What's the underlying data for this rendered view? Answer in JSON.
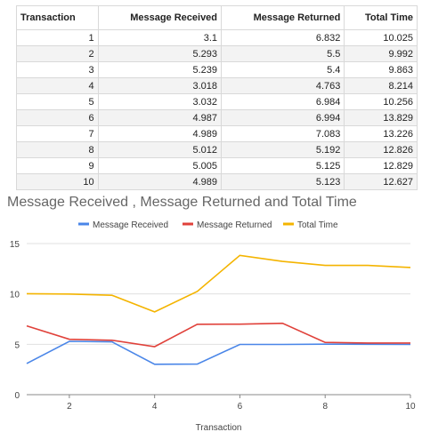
{
  "table": {
    "headers": [
      "Transaction",
      "Message Received",
      "Message Returned",
      "Total Time"
    ],
    "rows": [
      [
        "1",
        "3.1",
        "6.832",
        "10.025"
      ],
      [
        "2",
        "5.293",
        "5.5",
        "9.992"
      ],
      [
        "3",
        "5.239",
        "5.4",
        "9.863"
      ],
      [
        "4",
        "3.018",
        "4.763",
        "8.214"
      ],
      [
        "5",
        "3.032",
        "6.984",
        "10.256"
      ],
      [
        "6",
        "4.987",
        "6.994",
        "13.829"
      ],
      [
        "7",
        "4.989",
        "7.083",
        "13.226"
      ],
      [
        "8",
        "5.012",
        "5.192",
        "12.826"
      ],
      [
        "9",
        "5.005",
        "5.125",
        "12.829"
      ],
      [
        "10",
        "4.989",
        "5.123",
        "12.627"
      ]
    ]
  },
  "chart_data": {
    "type": "line",
    "title": "Message Received , Message Returned and Total Time",
    "xlabel": "Transaction",
    "ylabel": "",
    "x": [
      1,
      2,
      3,
      4,
      5,
      6,
      7,
      8,
      9,
      10
    ],
    "xlim": [
      1,
      10
    ],
    "ylim": [
      0,
      15
    ],
    "xticks": [
      2,
      4,
      6,
      8,
      10
    ],
    "yticks": [
      0,
      5,
      10,
      15
    ],
    "grid": true,
    "legend": "top",
    "series": [
      {
        "name": "Message Received",
        "color": "#4a86e8",
        "values": [
          3.1,
          5.293,
          5.239,
          3.018,
          3.032,
          4.987,
          4.989,
          5.012,
          5.005,
          4.989
        ]
      },
      {
        "name": "Message Returned",
        "color": "#e0413a",
        "values": [
          6.832,
          5.5,
          5.4,
          4.763,
          6.984,
          6.994,
          7.083,
          5.192,
          5.125,
          5.123
        ]
      },
      {
        "name": "Total Time",
        "color": "#f4b400",
        "values": [
          10.025,
          9.992,
          9.863,
          8.214,
          10.256,
          13.829,
          13.226,
          12.826,
          12.829,
          12.627
        ]
      }
    ]
  }
}
